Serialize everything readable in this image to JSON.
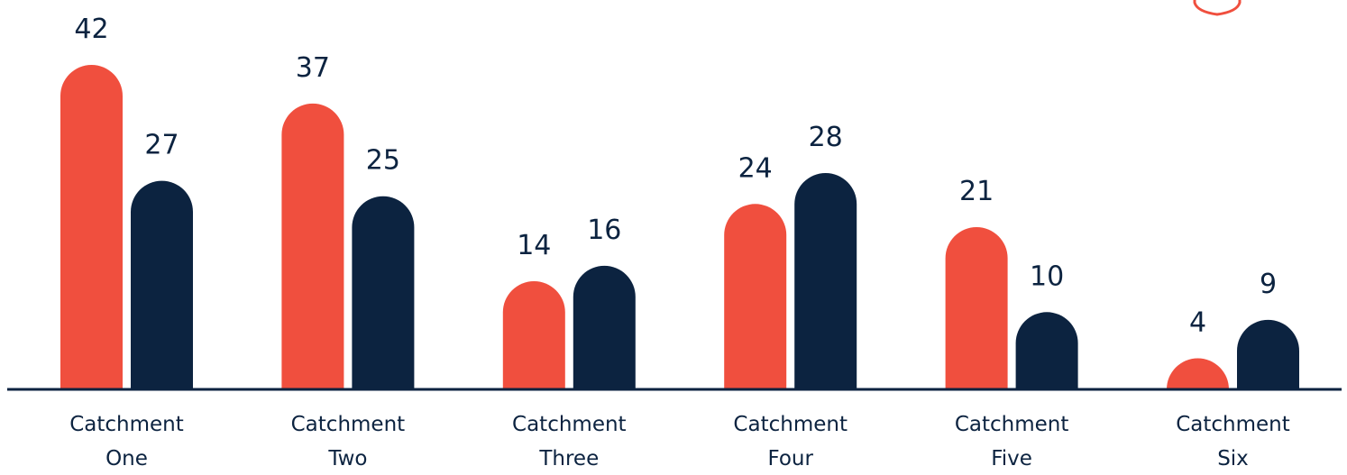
{
  "chart_data": {
    "type": "bar",
    "categories": [
      [
        "Catchment",
        "One"
      ],
      [
        "Catchment",
        "Two"
      ],
      [
        "Catchment",
        "Three"
      ],
      [
        "Catchment",
        "Four"
      ],
      [
        "Catchment",
        "Five"
      ],
      [
        "Catchment",
        "Six"
      ]
    ],
    "series": [
      {
        "values": [
          42,
          37,
          14,
          24,
          21,
          4
        ],
        "color": "#f04f3e"
      },
      {
        "values": [
          27,
          25,
          16,
          28,
          10,
          9
        ],
        "color": "#0c2340"
      }
    ],
    "title": "",
    "xlabel": "",
    "ylabel": "",
    "ylim": [
      0,
      42
    ],
    "grid": false,
    "data_labels": true,
    "bar_shape": "rounded-top",
    "baseline_color": "#0c2340",
    "decoration": {
      "shape": "shield-outline",
      "position": "top-right",
      "color": "#f04f3e"
    }
  }
}
